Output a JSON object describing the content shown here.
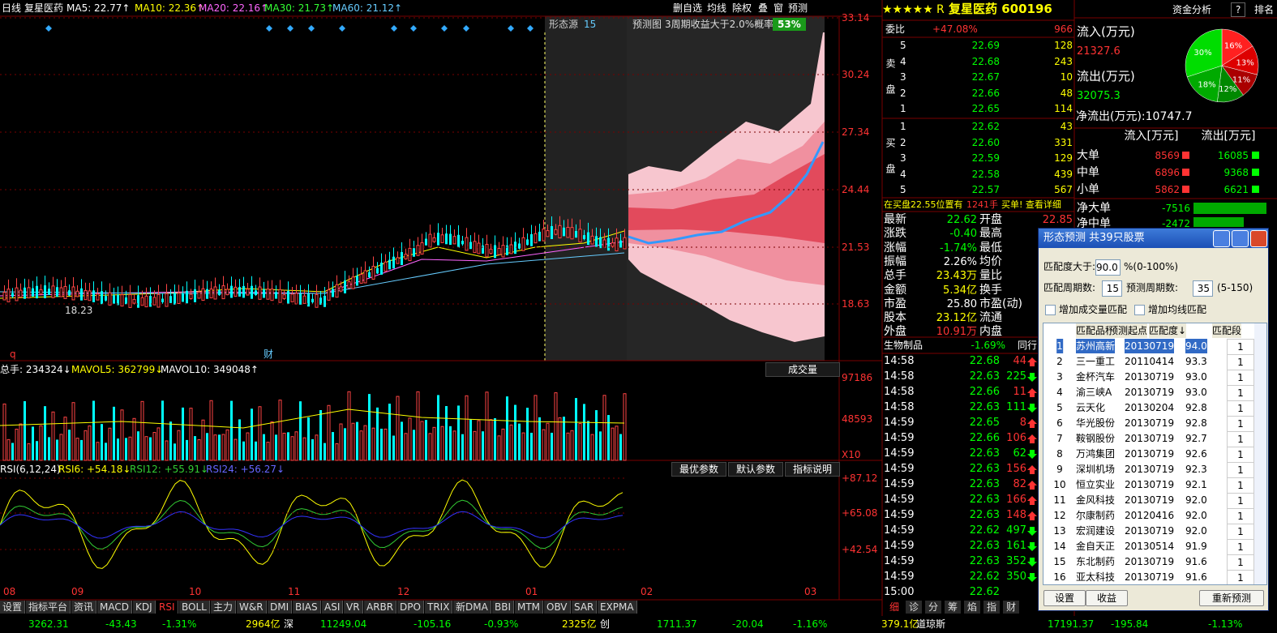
{
  "top_bar": {
    "period": "日线",
    "name": "复星医药",
    "ma": [
      {
        "text": "MA5: 22.77↑",
        "color": "#ffffff"
      },
      {
        "text": "MA10: 22.36↑",
        "color": "#ffff00"
      },
      {
        "text": "MA20: 22.16↑",
        "color": "#ff66ff"
      },
      {
        "text": "MA30: 21.73↑",
        "color": "#33ff33"
      },
      {
        "text": "MA60: 21.12↑",
        "color": "#66ccff"
      }
    ]
  },
  "toolbar": [
    "删自选",
    "均线",
    "除权",
    "叠",
    "窗",
    "预测"
  ],
  "forecast": {
    "source": "形态源",
    "source_count": "15",
    "title": "预测图",
    "desc": "3周期收益大于2.0%概率",
    "prob": "53%"
  },
  "price_axis": [
    "33.14",
    "30.24",
    "27.34",
    "24.44",
    "21.53",
    "18.63"
  ],
  "price_marks": {
    "low": "18.23",
    "q": "q",
    "cai": "财"
  },
  "volume": {
    "header": [
      {
        "text": "总手: 234324↓",
        "color": "#ffffff"
      },
      {
        "text": "MAVOL5: 362799↓",
        "color": "#ffff00"
      },
      {
        "text": "MAVOL10: 349048↑",
        "color": "#ffffff"
      }
    ],
    "button": "成交量",
    "axis": [
      "97186",
      "48593",
      "X10"
    ]
  },
  "rsi": {
    "header": [
      {
        "text": "RSI(6,12,24)",
        "color": "#ffffff"
      },
      {
        "text": "RSI6: +54.18↓",
        "color": "#ffff00"
      },
      {
        "text": "RSI12: +55.91↓",
        "color": "#33cc33"
      },
      {
        "text": "RSI24: +56.27↓",
        "color": "#6666ff"
      }
    ],
    "buttons": [
      "最优参数",
      "默认参数",
      "指标说明"
    ],
    "axis": [
      "+87.12",
      "+65.08",
      "+42.54"
    ]
  },
  "x_axis": [
    "08",
    "09",
    "10",
    "11",
    "12",
    "01",
    "02",
    "03"
  ],
  "tabs": [
    "设置",
    "指标平台",
    "资讯",
    "MACD",
    "KDJ",
    "RSI",
    "BOLL",
    "主力",
    "W&R",
    "DMI",
    "BIAS",
    "ASI",
    "VR",
    "ARBR",
    "DPO",
    "TRIX",
    "新DMA",
    "BBI",
    "MTM",
    "OBV",
    "SAR",
    "EXPMA"
  ],
  "active_tab": 5,
  "status": [
    {
      "text": "3262.31",
      "color": "#00ff00"
    },
    {
      "text": "-43.43",
      "color": "#00ff00"
    },
    {
      "text": "-1.31%",
      "color": "#00ff00"
    },
    {
      "text": "2964亿",
      "color": "#ffff00"
    },
    {
      "text": "深",
      "color": "#ffffff"
    },
    {
      "text": "11249.04",
      "color": "#00ff00"
    },
    {
      "text": "-105.16",
      "color": "#00ff00"
    },
    {
      "text": "-0.93%",
      "color": "#00ff00"
    },
    {
      "text": "2325亿",
      "color": "#ffff00"
    },
    {
      "text": "创",
      "color": "#ffffff"
    },
    {
      "text": "1711.37",
      "color": "#00ff00"
    },
    {
      "text": "-20.04",
      "color": "#00ff00"
    },
    {
      "text": "-1.16%",
      "color": "#00ff00"
    },
    {
      "text": "379.1亿",
      "color": "#ffff00"
    },
    {
      "text": "道琼斯",
      "color": "#ffffff"
    },
    {
      "text": "17191.37",
      "color": "#00ff00"
    },
    {
      "text": "-195.84",
      "color": "#00ff00"
    },
    {
      "text": "-1.13%",
      "color": "#00ff00"
    }
  ],
  "quote": {
    "stars": "★★★★★",
    "grade": "R",
    "title": "复星医药 600196",
    "ratio_label": "委比",
    "ratio": "+47.08%",
    "ratio_diff": "966",
    "sell_label": "卖盘",
    "buy_label": "买盘",
    "sell": [
      {
        "level": "5",
        "price": "22.69",
        "vol": "128"
      },
      {
        "level": "4",
        "price": "22.68",
        "vol": "243"
      },
      {
        "level": "3",
        "price": "22.67",
        "vol": "10"
      },
      {
        "level": "2",
        "price": "22.66",
        "vol": "48"
      },
      {
        "level": "1",
        "price": "22.65",
        "vol": "114"
      }
    ],
    "buy": [
      {
        "level": "1",
        "price": "22.62",
        "vol": "43"
      },
      {
        "level": "2",
        "price": "22.60",
        "vol": "331"
      },
      {
        "level": "3",
        "price": "22.59",
        "vol": "129"
      },
      {
        "level": "4",
        "price": "22.58",
        "vol": "439"
      },
      {
        "level": "5",
        "price": "22.57",
        "vol": "567"
      }
    ],
    "notice": [
      {
        "text": "在买盘22.55位置有",
        "color": "#ffff00"
      },
      {
        "text": "1241手",
        "color": "#ff3333"
      },
      {
        "text": "买单! 查看详细",
        "color": "#ffff00"
      }
    ],
    "stats": [
      {
        "l": "最新",
        "v": "22.62",
        "c": "#00ff00",
        "l2": "开盘",
        "v2": "22.85",
        "c2": "#ff3333"
      },
      {
        "l": "涨跌",
        "v": "-0.40",
        "c": "#00ff00",
        "l2": "最高"
      },
      {
        "l": "涨幅",
        "v": "-1.74%",
        "c": "#00ff00",
        "l2": "最低"
      },
      {
        "l": "振幅",
        "v": "2.26%",
        "c": "#ffffff",
        "l2": "均价"
      },
      {
        "l": "总手",
        "v": "23.43万",
        "c": "#ffff00",
        "l2": "量比"
      },
      {
        "l": "金额",
        "v": "5.34亿",
        "c": "#ffff00",
        "l2": "换手"
      },
      {
        "l": "市盈",
        "v": "25.80",
        "c": "#ffffff",
        "l2": "市盈(动)"
      },
      {
        "l": "股本",
        "v": "23.12亿",
        "c": "#ffff00",
        "l2": "流通"
      },
      {
        "l": "外盘",
        "v": "10.91万",
        "c": "#ff3333",
        "l2": "内盘"
      }
    ],
    "industry": {
      "name": "生物制品",
      "change": "-1.69%",
      "button": "同行"
    },
    "ticks": [
      {
        "time": "14:58",
        "price": "22.68",
        "vol": "44",
        "dir": "up"
      },
      {
        "time": "14:58",
        "price": "22.63",
        "vol": "225",
        "dir": "down"
      },
      {
        "time": "14:58",
        "price": "22.66",
        "vol": "11",
        "dir": "up"
      },
      {
        "time": "14:58",
        "price": "22.63",
        "vol": "111",
        "dir": "down"
      },
      {
        "time": "14:59",
        "price": "22.65",
        "vol": "8",
        "dir": "up"
      },
      {
        "time": "14:59",
        "price": "22.66",
        "vol": "106",
        "dir": "up"
      },
      {
        "time": "14:59",
        "price": "22.63",
        "vol": "62",
        "dir": "down"
      },
      {
        "time": "14:59",
        "price": "22.63",
        "vol": "156",
        "dir": "up"
      },
      {
        "time": "14:59",
        "price": "22.63",
        "vol": "82",
        "dir": "up"
      },
      {
        "time": "14:59",
        "price": "22.63",
        "vol": "166",
        "dir": "up"
      },
      {
        "time": "14:59",
        "price": "22.63",
        "vol": "148",
        "dir": "up"
      },
      {
        "time": "14:59",
        "price": "22.62",
        "vol": "497",
        "dir": "down"
      },
      {
        "time": "14:59",
        "price": "22.63",
        "vol": "161",
        "dir": "down"
      },
      {
        "time": "14:59",
        "price": "22.63",
        "vol": "352",
        "dir": "down"
      },
      {
        "time": "14:59",
        "price": "22.62",
        "vol": "350",
        "dir": "down"
      },
      {
        "time": "15:00",
        "price": "22.62"
      }
    ],
    "tabs": [
      "细",
      "诊",
      "分",
      "筹",
      "焰",
      "指",
      "财"
    ]
  },
  "fund": {
    "title": "资金分析",
    "help": "?",
    "rank": "排名",
    "inflow_label": "流入(万元)",
    "inflow": "21327.6",
    "outflow_label": "流出(万元)",
    "outflow": "32075.3",
    "net": "净流出(万元):10747.7",
    "pie": {
      "values": [
        16,
        13,
        11,
        12,
        18,
        30
      ],
      "value_labels": [
        "16%",
        "13%",
        "11%",
        "12%",
        "18%",
        "30%"
      ],
      "colors": [
        "#ff2020",
        "#dd0000",
        "#aa0000",
        "#008800",
        "#00aa00",
        "#00dd00"
      ]
    },
    "columns": [
      "流入[万元]",
      "流出[万元]"
    ],
    "rows": [
      {
        "name": "大单",
        "in": "8569",
        "out": "16085"
      },
      {
        "name": "中单",
        "in": "6896",
        "out": "9368"
      },
      {
        "name": "小单",
        "in": "5862",
        "out": "6621"
      }
    ],
    "net_rows": [
      {
        "name": "净大单",
        "value": "-7516"
      },
      {
        "name": "净中单",
        "value": "-2472"
      }
    ]
  },
  "dialog": {
    "title": "形态预测 共39只股票",
    "match_label": "匹配度大于:",
    "match": "90.0",
    "match_unit": "%(0-100%)",
    "period_label": "匹配周期数:",
    "period": "15",
    "forecast_label": "预测周期数:",
    "forecast": "35",
    "forecast_unit": "(5-150)",
    "checks": [
      "增加成交量匹配",
      "增加均线匹配"
    ],
    "columns": [
      "匹配品种",
      "预测起点",
      "匹配度↓",
      "匹配段"
    ],
    "rows": [
      [
        "1",
        "苏州高新",
        "20130719",
        "94.0",
        "1"
      ],
      [
        "2",
        "三一重工",
        "20110414",
        "93.3",
        "1"
      ],
      [
        "3",
        "金杯汽车",
        "20130719",
        "93.0",
        "1"
      ],
      [
        "4",
        "渝三峡A",
        "20130719",
        "93.0",
        "1"
      ],
      [
        "5",
        "云天化",
        "20130204",
        "92.8",
        "1"
      ],
      [
        "6",
        "华光股份",
        "20130719",
        "92.8",
        "1"
      ],
      [
        "7",
        "鞍钢股份",
        "20130719",
        "92.7",
        "1"
      ],
      [
        "8",
        "万鸿集团",
        "20130719",
        "92.6",
        "1"
      ],
      [
        "9",
        "深圳机场",
        "20130719",
        "92.3",
        "1"
      ],
      [
        "10",
        "恒立实业",
        "20130719",
        "92.1",
        "1"
      ],
      [
        "11",
        "金风科技",
        "20130719",
        "92.0",
        "1"
      ],
      [
        "12",
        "尔康制药",
        "20120416",
        "92.0",
        "1"
      ],
      [
        "13",
        "宏润建设",
        "20130719",
        "92.0",
        "1"
      ],
      [
        "14",
        "金自天正",
        "20130514",
        "91.9",
        "1"
      ],
      [
        "15",
        "东北制药",
        "20130719",
        "91.6",
        "1"
      ],
      [
        "16",
        "亚太科技",
        "20130719",
        "91.6",
        "1"
      ]
    ],
    "buttons": [
      "设置",
      "收益",
      "重新预测"
    ]
  }
}
